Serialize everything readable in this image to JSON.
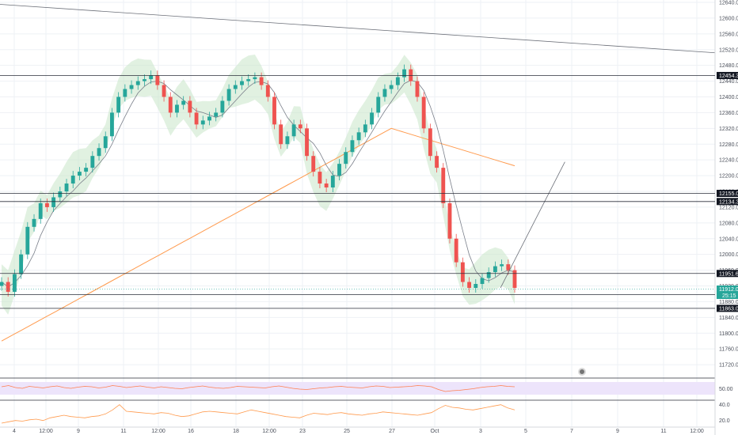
{
  "chart_data": {
    "type": "candlestick",
    "price_axis": {
      "ylim": [
        11680,
        12640
      ],
      "ticks": [
        "12640.0",
        "12600.0",
        "12560.0",
        "12520.0",
        "12480.0",
        "12440.0",
        "12400.0",
        "12360.0",
        "12320.0",
        "12280.0",
        "12240.0",
        "12200.0",
        "12160.0",
        "12120.0",
        "12080.0",
        "12040.0",
        "12000.0",
        "11960.0",
        "11920.0",
        "11880.0",
        "11840.0",
        "11800.0",
        "11760.0",
        "11720.0"
      ]
    },
    "x_axis": {
      "ticks": [
        "4",
        "12:00",
        "9",
        "11",
        "12:00",
        "16",
        "18",
        "12:00",
        "23",
        "25",
        "27",
        "Oct",
        "3",
        "5",
        "7",
        "9",
        "11",
        "12:00"
      ]
    },
    "horizontal_levels": [
      {
        "label": "12454.3",
        "value": 12454.3
      },
      {
        "label": "12155.0",
        "value": 12155.0
      },
      {
        "label": "12134.3",
        "value": 12134.3
      },
      {
        "label": "11951.6",
        "value": 11951.6
      },
      {
        "label": "11897.9",
        "value": 11897.9
      },
      {
        "label": "11863.0",
        "value": 11863.0
      }
    ],
    "last_price": {
      "label": "11912.0",
      "sub": "25:15",
      "value": 11912.0,
      "color": "#26a69a"
    },
    "trendlines": [
      {
        "from": [
          0,
          12635
        ],
        "to": [
          1,
          12512
        ]
      },
      {
        "from": [
          0.7,
          11915
        ],
        "to": [
          0.79,
          12235
        ]
      }
    ],
    "colors": {
      "up": "#26a69a",
      "down": "#ef5350",
      "band": "#c8e6c9",
      "ma_long": "#ff9a4d",
      "rsi_band": "#ede4fb"
    },
    "close_series": [
      11930,
      11905,
      11950,
      12000,
      12070,
      12090,
      12130,
      12120,
      12145,
      12160,
      12180,
      12200,
      12210,
      12220,
      12250,
      12270,
      12300,
      12360,
      12400,
      12420,
      12430,
      12440,
      12445,
      12455,
      12430,
      12400,
      12360,
      12380,
      12390,
      12360,
      12330,
      12340,
      12350,
      12360,
      12390,
      12420,
      12430,
      12440,
      12445,
      12450,
      12430,
      12400,
      12330,
      12280,
      12300,
      12330,
      12320,
      12250,
      12210,
      12180,
      12170,
      12200,
      12230,
      12260,
      12290,
      12310,
      12330,
      12360,
      12400,
      12420,
      12430,
      12450,
      12470,
      12440,
      12400,
      12320,
      12250,
      12220,
      12130,
      12040,
      11980,
      11930,
      11915,
      11925,
      11940,
      11955,
      11970,
      11975,
      11960,
      11915
    ],
    "rsi": {
      "ticks": [
        "50.00"
      ],
      "values": [
        52,
        55,
        50,
        48,
        53,
        51,
        49,
        52,
        54,
        50,
        48,
        51,
        53,
        52,
        49,
        51,
        55,
        53,
        50,
        52,
        54,
        51,
        49,
        52,
        50,
        48,
        47,
        50,
        52,
        54,
        51,
        49,
        48,
        50,
        53,
        52,
        51,
        50,
        49,
        52,
        54,
        51,
        48,
        46,
        45,
        47,
        49,
        50,
        52,
        53,
        51,
        50,
        49,
        52,
        54,
        53,
        50,
        51,
        52,
        53,
        55,
        54,
        52,
        45,
        40,
        42,
        43,
        45,
        47,
        50,
        52,
        53,
        55,
        53,
        52
      ]
    },
    "lower": {
      "ticks": [
        "40.0",
        "20.0"
      ],
      "values": [
        10,
        12,
        14,
        13,
        15,
        16,
        14,
        18,
        20,
        22,
        20,
        19,
        18,
        20,
        21,
        24,
        30,
        38,
        28,
        27,
        26,
        25,
        24,
        26,
        25,
        22,
        20,
        21,
        24,
        27,
        28,
        27,
        26,
        25,
        24,
        27,
        30,
        28,
        26,
        24,
        22,
        20,
        19,
        18,
        22,
        25,
        24,
        23,
        25,
        26,
        24,
        23,
        22,
        24,
        25,
        27,
        26,
        25,
        24,
        23,
        22,
        24,
        26,
        32,
        37,
        34,
        33,
        31,
        30,
        32,
        34,
        36,
        38,
        33,
        30
      ]
    }
  }
}
